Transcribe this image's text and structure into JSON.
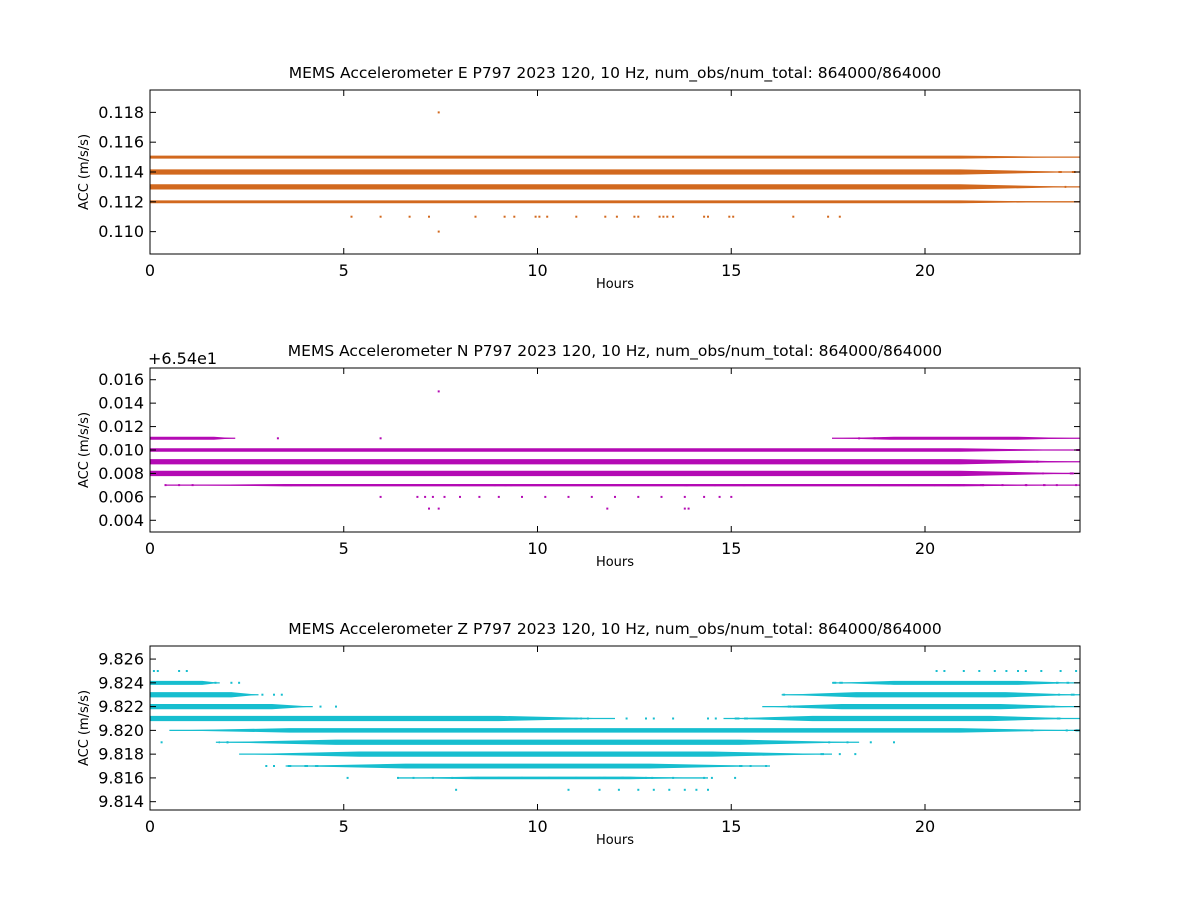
{
  "chart_data": [
    {
      "type": "scatter",
      "title": "MEMS Accelerometer E P797 2023 120, 10 Hz, num_obs/num_total: 864000/864000",
      "xlabel": "Hours",
      "ylabel": "ACC (m/s/s)",
      "offset_text": "",
      "xlim": [
        0,
        24
      ],
      "ylim": [
        0.1085,
        0.1195
      ],
      "xticks": [
        0,
        5,
        10,
        15,
        20
      ],
      "xtick_labels": [
        "0",
        "5",
        "10",
        "15",
        "20"
      ],
      "yticks": [
        0.11,
        0.112,
        0.114,
        0.116,
        0.118
      ],
      "ytick_labels": [
        "0.110",
        "0.112",
        "0.114",
        "0.116",
        "0.118"
      ],
      "color": "#d2691e",
      "bands": [
        {
          "y": 0.112,
          "x_start": 0,
          "x_end": 24,
          "edge_density": 0.45
        },
        {
          "y": 0.113,
          "x_start": 0,
          "x_end": 24,
          "edge_density": 1.0
        },
        {
          "y": 0.114,
          "x_start": 0,
          "x_end": 24,
          "edge_density": 1.0
        },
        {
          "y": 0.115,
          "x_start": 0,
          "x_end": 24,
          "edge_density": 0.5
        }
      ],
      "points": [
        [
          7.45,
          0.118
        ],
        [
          7.45,
          0.11
        ],
        [
          5.2,
          0.111
        ],
        [
          5.95,
          0.111
        ],
        [
          6.7,
          0.111
        ],
        [
          7.2,
          0.111
        ],
        [
          8.4,
          0.111
        ],
        [
          9.15,
          0.111
        ],
        [
          9.4,
          0.111
        ],
        [
          9.95,
          0.111
        ],
        [
          10.05,
          0.111
        ],
        [
          10.25,
          0.111
        ],
        [
          11.0,
          0.111
        ],
        [
          11.75,
          0.111
        ],
        [
          12.05,
          0.111
        ],
        [
          12.5,
          0.111
        ],
        [
          12.6,
          0.111
        ],
        [
          13.15,
          0.111
        ],
        [
          13.25,
          0.111
        ],
        [
          13.35,
          0.111
        ],
        [
          13.5,
          0.111
        ],
        [
          14.3,
          0.111
        ],
        [
          14.4,
          0.111
        ],
        [
          14.95,
          0.111
        ],
        [
          15.05,
          0.111
        ],
        [
          16.6,
          0.111
        ],
        [
          17.5,
          0.111
        ],
        [
          17.8,
          0.111
        ],
        [
          9.5,
          0.115
        ],
        [
          10.3,
          0.115
        ],
        [
          13.2,
          0.115
        ],
        [
          13.8,
          0.115
        ],
        [
          14.6,
          0.115
        ],
        [
          15.7,
          0.115
        ]
      ]
    },
    {
      "type": "scatter",
      "title": "MEMS Accelerometer N P797 2023 120, 10 Hz, num_obs/num_total: 864000/864000",
      "xlabel": "Hours",
      "ylabel": "ACC (m/s/s)",
      "offset_text": "+6.54e1",
      "xlim": [
        0,
        24
      ],
      "ylim": [
        0.003,
        0.017
      ],
      "xticks": [
        0,
        5,
        10,
        15,
        20
      ],
      "xtick_labels": [
        "0",
        "5",
        "10",
        "15",
        "20"
      ],
      "yticks": [
        0.004,
        0.006,
        0.008,
        0.01,
        0.012,
        0.014,
        0.016
      ],
      "ytick_labels": [
        "0.004",
        "0.006",
        "0.008",
        "0.010",
        "0.012",
        "0.014",
        "0.016"
      ],
      "color": "#b40ab4",
      "bands": [
        {
          "y": 0.007,
          "x_start": 0.4,
          "x_end": 24,
          "edge_density": 0.35
        },
        {
          "y": 0.008,
          "x_start": 0,
          "x_end": 24,
          "edge_density": 1.0
        },
        {
          "y": 0.009,
          "x_start": 0,
          "x_end": 24,
          "edge_density": 1.0
        },
        {
          "y": 0.01,
          "x_start": 0,
          "x_end": 24,
          "edge_density": 0.6
        },
        {
          "y": 0.011,
          "x_start": 0,
          "x_end": 2.2,
          "edge_density": 0.5
        },
        {
          "y": 0.011,
          "x_start": 17.6,
          "x_end": 24,
          "edge_density": 0.5
        }
      ],
      "points": [
        [
          7.45,
          0.015
        ],
        [
          7.2,
          0.005
        ],
        [
          7.45,
          0.005
        ],
        [
          11.8,
          0.005
        ],
        [
          13.8,
          0.005
        ],
        [
          13.9,
          0.005
        ],
        [
          3.3,
          0.011
        ],
        [
          5.95,
          0.011
        ],
        [
          5.95,
          0.006
        ],
        [
          6.9,
          0.006
        ],
        [
          7.1,
          0.006
        ],
        [
          7.3,
          0.006
        ],
        [
          7.6,
          0.006
        ],
        [
          8.0,
          0.006
        ],
        [
          8.5,
          0.006
        ],
        [
          9.0,
          0.006
        ],
        [
          9.6,
          0.006
        ],
        [
          10.2,
          0.006
        ],
        [
          10.8,
          0.006
        ],
        [
          11.4,
          0.006
        ],
        [
          12.0,
          0.006
        ],
        [
          12.6,
          0.006
        ],
        [
          13.2,
          0.006
        ],
        [
          13.8,
          0.006
        ],
        [
          14.3,
          0.006
        ],
        [
          14.7,
          0.006
        ],
        [
          15.0,
          0.006
        ],
        [
          7.6,
          0.01
        ],
        [
          8.4,
          0.01
        ],
        [
          8.8,
          0.01
        ],
        [
          9.3,
          0.01
        ],
        [
          10.1,
          0.01
        ],
        [
          10.5,
          0.01
        ],
        [
          11.6,
          0.01
        ],
        [
          12.6,
          0.01
        ],
        [
          18.3,
          0.011
        ],
        [
          18.7,
          0.011
        ],
        [
          19.0,
          0.011
        ],
        [
          20.6,
          0.007
        ],
        [
          21.0,
          0.007
        ],
        [
          21.5,
          0.007
        ],
        [
          22.0,
          0.007
        ],
        [
          22.6,
          0.007
        ],
        [
          23.4,
          0.007
        ],
        [
          23.9,
          0.007
        ],
        [
          0.4,
          0.007
        ],
        [
          0.75,
          0.007
        ],
        [
          1.1,
          0.007
        ]
      ]
    },
    {
      "type": "scatter",
      "title": "MEMS Accelerometer Z P797 2023 120, 10 Hz, num_obs/num_total: 864000/864000",
      "xlabel": "Hours",
      "ylabel": "ACC (m/s/s)",
      "offset_text": "",
      "xlim": [
        0,
        24
      ],
      "ylim": [
        9.8133,
        9.8271
      ],
      "xticks": [
        0,
        5,
        10,
        15,
        20
      ],
      "xtick_labels": [
        "0",
        "5",
        "10",
        "15",
        "20"
      ],
      "yticks": [
        9.814,
        9.816,
        9.818,
        9.82,
        9.822,
        9.824,
        9.826
      ],
      "ytick_labels": [
        "9.814",
        "9.816",
        "9.818",
        "9.820",
        "9.822",
        "9.824",
        "9.826"
      ],
      "color": "#17becf",
      "bands": [
        {
          "y": 9.824,
          "x_start": 0,
          "x_end": 1.8,
          "edge_density": 0.7
        },
        {
          "y": 9.824,
          "x_start": 17.6,
          "x_end": 24,
          "edge_density": 0.7
        },
        {
          "y": 9.823,
          "x_start": 0,
          "x_end": 2.8,
          "edge_density": 1.0
        },
        {
          "y": 9.823,
          "x_start": 16.3,
          "x_end": 24,
          "edge_density": 1.0
        },
        {
          "y": 9.822,
          "x_start": 0,
          "x_end": 4.2,
          "edge_density": 1.0
        },
        {
          "y": 9.822,
          "x_start": 15.8,
          "x_end": 24,
          "edge_density": 1.0
        },
        {
          "y": 9.821,
          "x_start": 0,
          "x_end": 12.0,
          "edge_density": 1.0
        },
        {
          "y": 9.821,
          "x_start": 14.8,
          "x_end": 24,
          "edge_density": 1.0
        },
        {
          "y": 9.82,
          "x_start": 0.5,
          "x_end": 24,
          "edge_density": 0.8
        },
        {
          "y": 9.819,
          "x_start": 1.7,
          "x_end": 18.3,
          "edge_density": 1.0
        },
        {
          "y": 9.818,
          "x_start": 2.3,
          "x_end": 17.6,
          "edge_density": 1.0
        },
        {
          "y": 9.817,
          "x_start": 3.5,
          "x_end": 16.0,
          "edge_density": 0.9
        },
        {
          "y": 9.816,
          "x_start": 6.4,
          "x_end": 14.4,
          "edge_density": 0.4
        }
      ],
      "points": [
        [
          0.1,
          9.825
        ],
        [
          0.2,
          9.825
        ],
        [
          0.75,
          9.825
        ],
        [
          0.95,
          9.825
        ],
        [
          20.3,
          9.825
        ],
        [
          20.5,
          9.825
        ],
        [
          21.0,
          9.825
        ],
        [
          21.4,
          9.825
        ],
        [
          21.8,
          9.825
        ],
        [
          22.1,
          9.825
        ],
        [
          22.4,
          9.825
        ],
        [
          22.6,
          9.825
        ],
        [
          23.0,
          9.825
        ],
        [
          23.5,
          9.825
        ],
        [
          23.9,
          9.825
        ],
        [
          2.1,
          9.824
        ],
        [
          2.3,
          9.824
        ],
        [
          2.9,
          9.823
        ],
        [
          3.2,
          9.823
        ],
        [
          3.4,
          9.823
        ],
        [
          4.4,
          9.822
        ],
        [
          4.8,
          9.822
        ],
        [
          0.3,
          9.819
        ],
        [
          18.0,
          9.819
        ],
        [
          18.6,
          9.819
        ],
        [
          19.2,
          9.819
        ],
        [
          17.8,
          9.818
        ],
        [
          18.2,
          9.818
        ],
        [
          2.0,
          9.819
        ],
        [
          3.0,
          9.817
        ],
        [
          3.2,
          9.817
        ],
        [
          15.5,
          9.817
        ],
        [
          15.9,
          9.817
        ],
        [
          5.1,
          9.816
        ],
        [
          6.4,
          9.816
        ],
        [
          6.8,
          9.816
        ],
        [
          7.3,
          9.816
        ],
        [
          7.8,
          9.816
        ],
        [
          8.3,
          9.816
        ],
        [
          9.0,
          9.816
        ],
        [
          9.6,
          9.816
        ],
        [
          10.3,
          9.816
        ],
        [
          11.0,
          9.816
        ],
        [
          11.6,
          9.816
        ],
        [
          12.2,
          9.816
        ],
        [
          12.8,
          9.816
        ],
        [
          13.5,
          9.816
        ],
        [
          14.3,
          9.816
        ],
        [
          14.5,
          9.816
        ],
        [
          15.1,
          9.816
        ],
        [
          7.9,
          9.815
        ],
        [
          10.8,
          9.815
        ],
        [
          11.6,
          9.815
        ],
        [
          12.1,
          9.815
        ],
        [
          12.6,
          9.815
        ],
        [
          13.0,
          9.815
        ],
        [
          13.4,
          9.815
        ],
        [
          13.8,
          9.815
        ],
        [
          14.1,
          9.815
        ],
        [
          14.4,
          9.815
        ],
        [
          7.0,
          9.821
        ],
        [
          7.5,
          9.821
        ],
        [
          8.0,
          9.821
        ],
        [
          8.6,
          9.821
        ],
        [
          9.3,
          9.821
        ],
        [
          10.0,
          9.821
        ],
        [
          10.6,
          9.821
        ],
        [
          11.3,
          9.821
        ],
        [
          12.3,
          9.821
        ],
        [
          12.8,
          9.821
        ],
        [
          13.0,
          9.821
        ],
        [
          13.5,
          9.821
        ],
        [
          14.4,
          9.821
        ],
        [
          14.6,
          9.821
        ]
      ]
    }
  ]
}
